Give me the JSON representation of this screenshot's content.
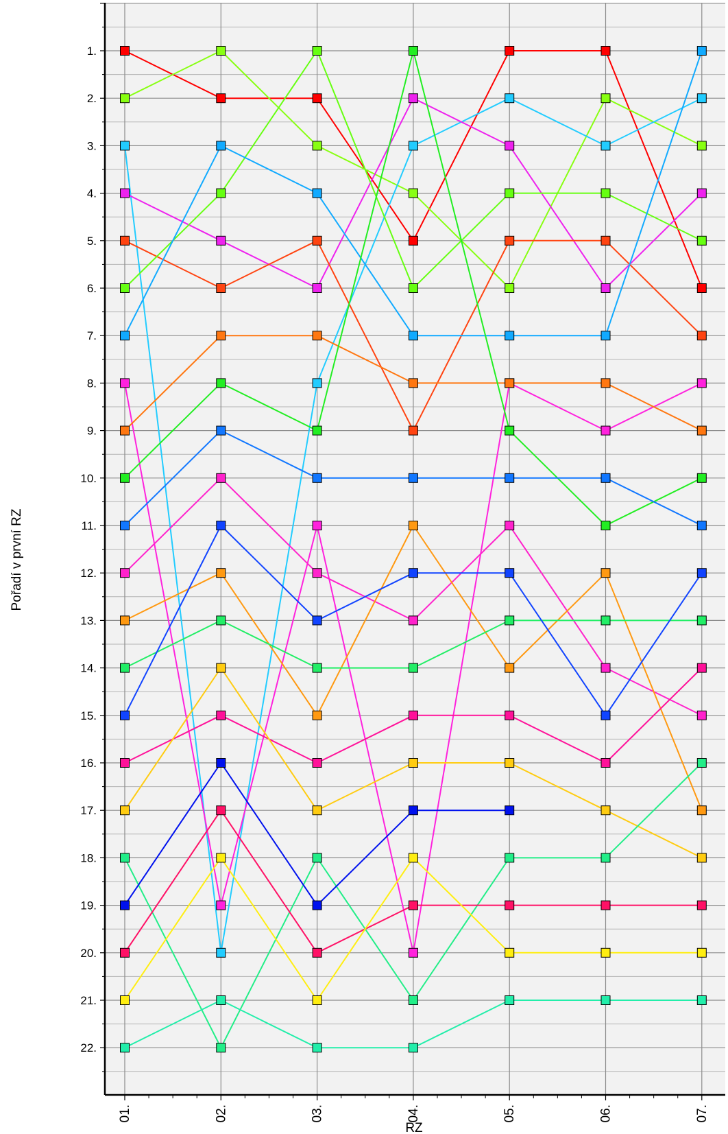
{
  "chart_data": {
    "type": "line",
    "title": "",
    "xlabel": "RZ",
    "ylabel": "Pořadí v první RZ",
    "categories": [
      "01.",
      "02.",
      "03.",
      "04.",
      "05.",
      "06.",
      "07."
    ],
    "yticks": [
      "1.",
      "2.",
      "3.",
      "4.",
      "5.",
      "6.",
      "7.",
      "8.",
      "9.",
      "10.",
      "11.",
      "12.",
      "13.",
      "14.",
      "15.",
      "16.",
      "17.",
      "18.",
      "19.",
      "20.",
      "21.",
      "22."
    ],
    "ylim": [
      0,
      23
    ],
    "y_inverted": true,
    "grid": true,
    "series": [
      {
        "color": "#ff0000",
        "values": [
          1,
          2,
          2,
          5,
          1,
          1,
          6
        ]
      },
      {
        "color": "#88ff11",
        "values": [
          2,
          1,
          3,
          4,
          6,
          2,
          3
        ]
      },
      {
        "color": "#22ccff",
        "values": [
          3,
          20,
          8,
          3,
          2,
          3,
          2
        ]
      },
      {
        "color": "#ee22ee",
        "values": [
          4,
          5,
          6,
          2,
          3,
          6,
          4
        ]
      },
      {
        "color": "#ff4411",
        "values": [
          5,
          6,
          5,
          9,
          5,
          5,
          7
        ]
      },
      {
        "color": "#66ff11",
        "values": [
          6,
          4,
          1,
          6,
          4,
          4,
          5
        ]
      },
      {
        "color": "#11aaff",
        "values": [
          7,
          3,
          4,
          7,
          7,
          7,
          1
        ]
      },
      {
        "color": "#ff22dd",
        "values": [
          8,
          19,
          11,
          20,
          8,
          9,
          8
        ]
      },
      {
        "color": "#ff7711",
        "values": [
          9,
          7,
          7,
          8,
          8,
          8,
          9
        ]
      },
      {
        "color": "#22ee22",
        "values": [
          10,
          8,
          9,
          1,
          9,
          11,
          10
        ]
      },
      {
        "color": "#1177ff",
        "values": [
          11,
          9,
          10,
          10,
          10,
          10,
          11
        ]
      },
      {
        "color": "#ff22cc",
        "values": [
          12,
          10,
          12,
          13,
          11,
          14,
          15
        ]
      },
      {
        "color": "#ff9911",
        "values": [
          13,
          12,
          15,
          11,
          14,
          12,
          17
        ]
      },
      {
        "color": "#22ee66",
        "values": [
          14,
          13,
          14,
          14,
          13,
          13,
          13
        ]
      },
      {
        "color": "#1144ff",
        "values": [
          15,
          11,
          13,
          12,
          12,
          15,
          12
        ]
      },
      {
        "color": "#ff1199",
        "values": [
          16,
          15,
          16,
          15,
          15,
          16,
          14
        ]
      },
      {
        "color": "#ffcc11",
        "values": [
          17,
          14,
          17,
          16,
          16,
          17,
          18
        ]
      },
      {
        "color": "#22ee88",
        "values": [
          18,
          22,
          18,
          21,
          18,
          18,
          16
        ]
      },
      {
        "color": "#0011ee",
        "values": [
          19,
          16,
          19,
          17,
          17,
          null,
          null
        ]
      },
      {
        "color": "#ff1166",
        "values": [
          20,
          17,
          20,
          19,
          19,
          19,
          19
        ]
      },
      {
        "color": "#ffee11",
        "values": [
          21,
          18,
          21,
          18,
          20,
          20,
          20
        ]
      },
      {
        "color": "#22eeaa",
        "values": [
          22,
          21,
          22,
          22,
          21,
          21,
          21
        ]
      }
    ]
  }
}
